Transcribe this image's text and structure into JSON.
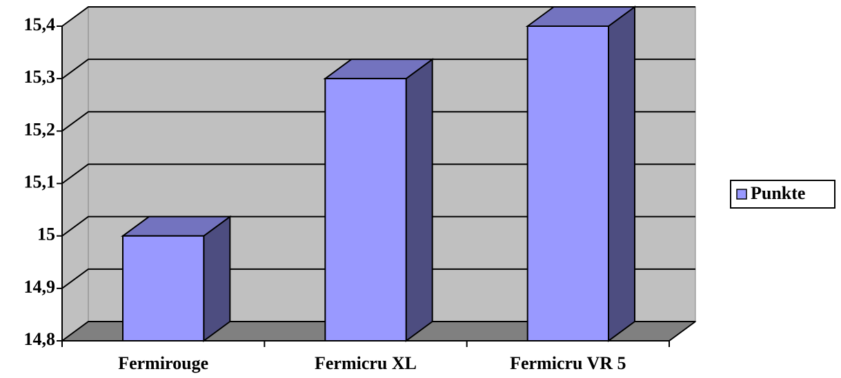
{
  "chart_data": {
    "type": "bar",
    "categories": [
      "Fermirouge",
      "Fermicru XL",
      "Fermicru VR 5"
    ],
    "series": [
      {
        "name": "Punkte",
        "color": "#9999ff",
        "values": [
          15,
          15.3,
          15.4
        ]
      }
    ],
    "ylim": [
      14.8,
      15.4
    ],
    "yticks": [
      {
        "value": 14.8,
        "label": "14,8"
      },
      {
        "value": 14.9,
        "label": "14,9"
      },
      15,
      {
        "value": 15.1,
        "label": "15,1"
      },
      {
        "value": 15.2,
        "label": "15,2"
      },
      {
        "value": 15.3,
        "label": "15,3"
      },
      {
        "value": 15.4,
        "label": "15,4"
      }
    ],
    "grid": true,
    "legend": "right"
  }
}
